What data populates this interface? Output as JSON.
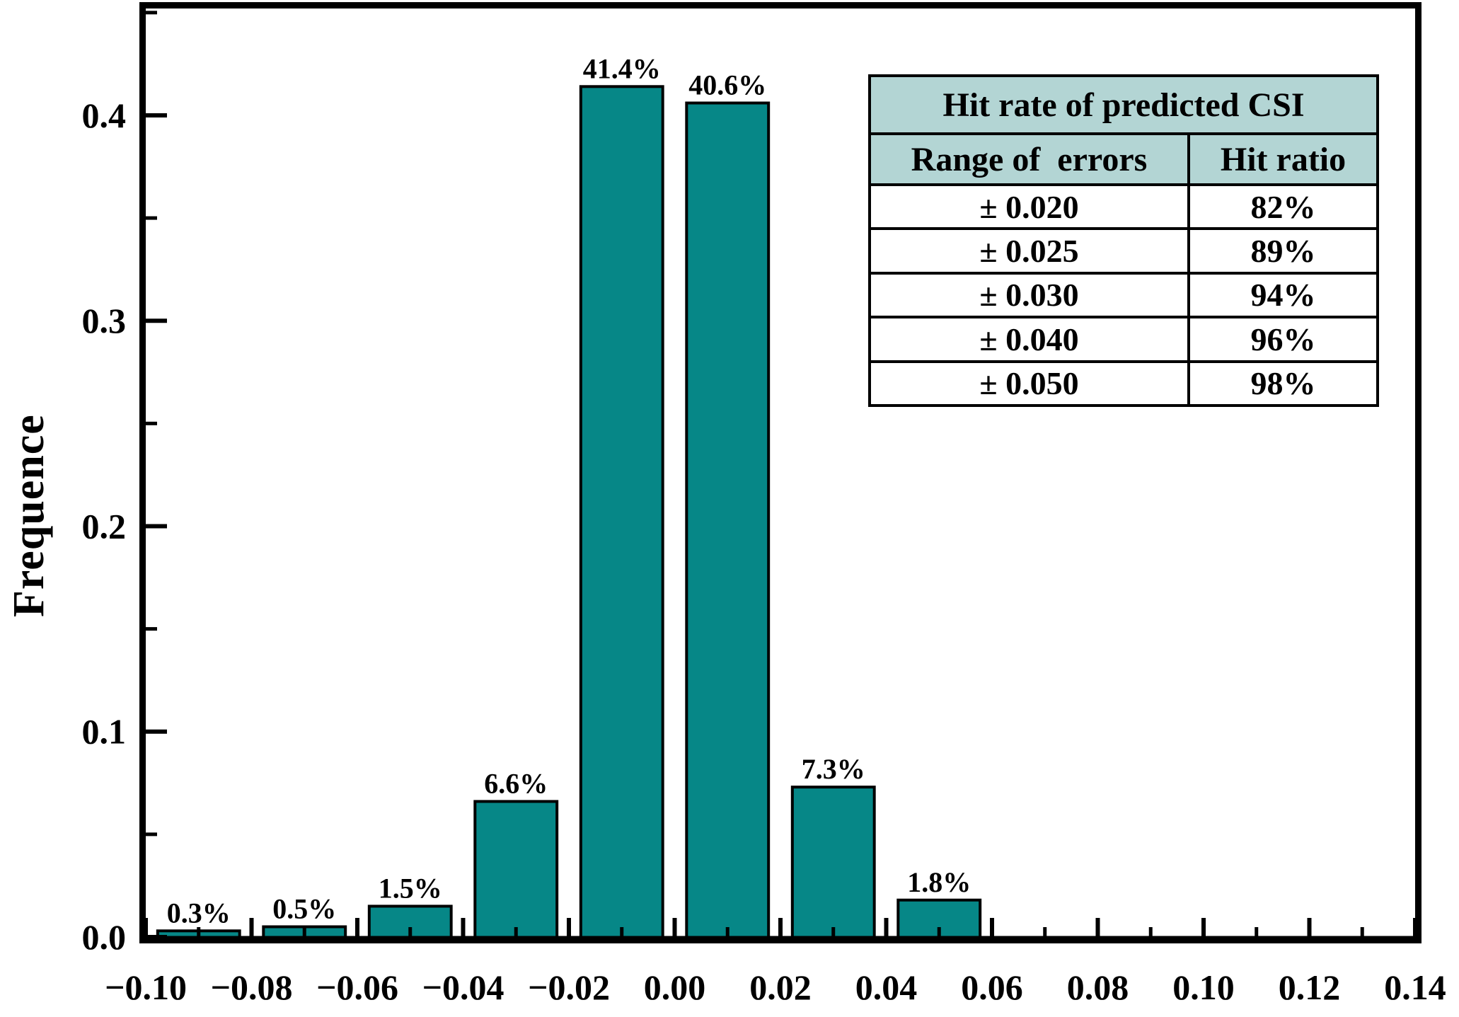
{
  "chart_data": {
    "type": "bar",
    "title": "",
    "xlabel": "",
    "ylabel": "Frequence",
    "xlim": [
      -0.1,
      0.14
    ],
    "ylim": [
      0,
      0.452
    ],
    "grid": false,
    "legend": "none",
    "bar_color": "#068787",
    "bar_border_color": "#000000",
    "bin_width": 0.02,
    "bar_width": 0.0155,
    "x": [
      -0.09,
      -0.07,
      -0.05,
      -0.03,
      -0.01,
      0.01,
      0.03,
      0.05
    ],
    "values": [
      0.003,
      0.005,
      0.015,
      0.066,
      0.414,
      0.406,
      0.073,
      0.018
    ],
    "bar_labels": [
      "0.3%",
      "0.5%",
      "1.5%",
      "6.6%",
      "41.4%",
      "40.6%",
      "7.3%",
      "1.8%"
    ],
    "x_major_tick_values": [
      -0.1,
      -0.08,
      -0.06,
      -0.04,
      -0.02,
      0.0,
      0.02,
      0.04,
      0.06,
      0.08,
      0.1,
      0.12,
      0.14
    ],
    "x_major_tick_labels": [
      "−0.10",
      "−0.08",
      "−0.06",
      "−0.04",
      "−0.02",
      "0.00",
      "0.02",
      "0.04",
      "0.06",
      "0.08",
      "0.10",
      "0.12",
      "0.14"
    ],
    "x_minor_tick_step": 0.01,
    "y_major_tick_values": [
      0.0,
      0.1,
      0.2,
      0.3,
      0.4
    ],
    "y_major_tick_labels": [
      "0.0",
      "0.1",
      "0.2",
      "0.3",
      "0.4"
    ],
    "y_minor_tick_step": 0.05
  },
  "inset_table": {
    "title": "Hit rate of predicted CSI",
    "columns": [
      "Range of  errors",
      "Hit ratio"
    ],
    "rows": [
      [
        "± 0.020",
        "82%"
      ],
      [
        "± 0.025",
        "89%"
      ],
      [
        "± 0.030",
        "94%"
      ],
      [
        "± 0.040",
        "96%"
      ],
      [
        "± 0.050",
        "98%"
      ]
    ],
    "header_bg": "#b3d5d4",
    "body_bg": "#ffffff"
  }
}
